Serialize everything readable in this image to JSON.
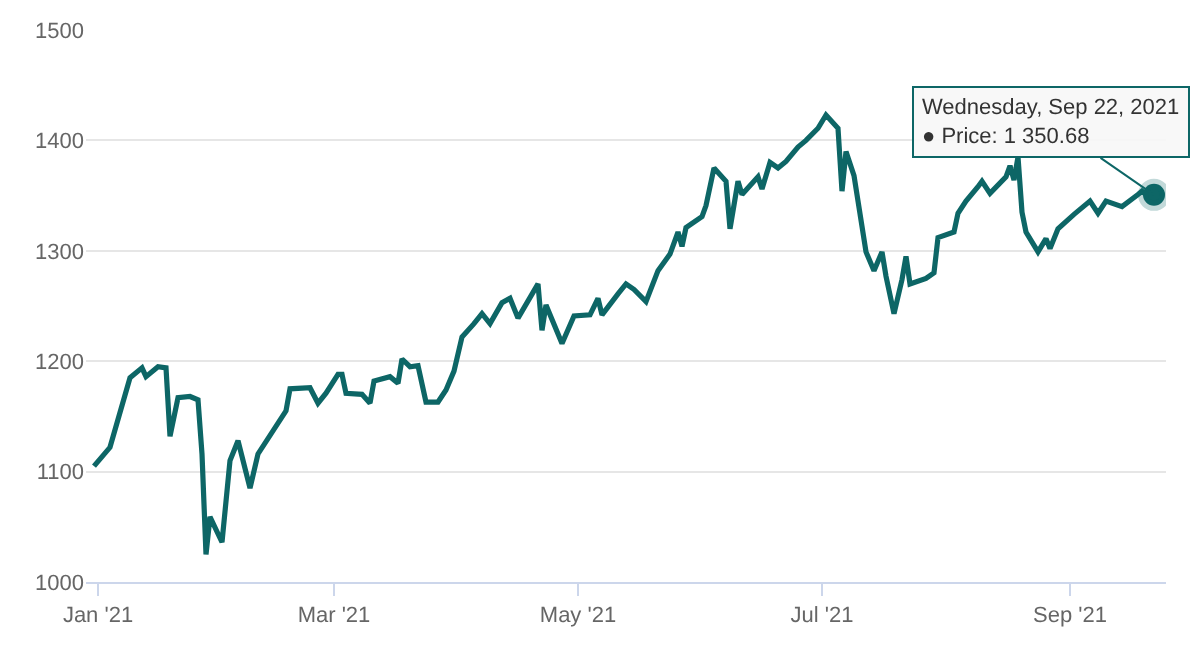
{
  "chart_data": {
    "type": "line",
    "x": [
      "2020-12-31",
      "2021-01-04",
      "2021-01-09",
      "2021-01-12",
      "2021-01-13",
      "2021-01-16",
      "2021-01-18",
      "2021-01-19",
      "2021-01-21",
      "2021-01-24",
      "2021-01-26",
      "2021-01-27",
      "2021-01-28",
      "2021-01-29",
      "2021-02-01",
      "2021-02-03",
      "2021-02-05",
      "2021-02-08",
      "2021-02-10",
      "2021-02-17",
      "2021-02-18",
      "2021-02-23",
      "2021-02-25",
      "2021-02-27",
      "2021-03-02",
      "2021-03-03",
      "2021-03-04",
      "2021-03-08",
      "2021-03-10",
      "2021-03-11",
      "2021-03-15",
      "2021-03-17",
      "2021-03-18",
      "2021-03-20",
      "2021-03-22",
      "2021-03-24",
      "2021-03-27",
      "2021-03-29",
      "2021-03-31",
      "2021-04-02",
      "2021-04-05",
      "2021-04-07",
      "2021-04-09",
      "2021-04-12",
      "2021-04-14",
      "2021-04-16",
      "2021-04-21",
      "2021-04-22",
      "2021-04-23",
      "2021-04-27",
      "2021-04-30",
      "2021-05-04",
      "2021-05-06",
      "2021-05-07",
      "2021-05-11",
      "2021-05-13",
      "2021-05-15",
      "2021-05-18",
      "2021-05-21",
      "2021-05-24",
      "2021-05-26",
      "2021-05-27",
      "2021-05-28",
      "2021-06-01",
      "2021-06-02",
      "2021-06-04",
      "2021-06-07",
      "2021-06-08",
      "2021-06-10",
      "2021-06-11",
      "2021-06-15",
      "2021-06-16",
      "2021-06-18",
      "2021-06-20",
      "2021-06-22",
      "2021-06-25",
      "2021-06-27",
      "2021-06-30",
      "2021-07-02",
      "2021-07-05",
      "2021-07-06",
      "2021-07-07",
      "2021-07-09",
      "2021-07-12",
      "2021-07-14",
      "2021-07-16",
      "2021-07-17",
      "2021-07-19",
      "2021-07-21",
      "2021-07-22",
      "2021-07-23",
      "2021-07-27",
      "2021-07-29",
      "2021-07-30",
      "2021-08-03",
      "2021-08-04",
      "2021-08-06",
      "2021-08-09",
      "2021-08-10",
      "2021-08-12",
      "2021-08-16",
      "2021-08-17",
      "2021-08-18",
      "2021-08-19",
      "2021-08-20",
      "2021-08-21",
      "2021-08-24",
      "2021-08-26",
      "2021-08-27",
      "2021-08-29",
      "2021-09-02",
      "2021-09-06",
      "2021-09-08",
      "2021-09-10",
      "2021-09-14",
      "2021-09-18",
      "2021-09-19",
      "2021-09-21",
      "2021-09-22"
    ],
    "series": [
      {
        "color": "#0d6666",
        "values": [
          1105,
          1122,
          1185,
          1194,
          1186,
          1195,
          1194,
          1132,
          1167,
          1168,
          1165,
          1116,
          1025,
          1059,
          1036,
          1110,
          1128,
          1085,
          1116,
          1155,
          1175,
          1176,
          1162,
          1171,
          1188,
          1188,
          1171,
          1170,
          1162,
          1182,
          1186,
          1180,
          1202,
          1195,
          1196,
          1163,
          1163,
          1174,
          1191,
          1222,
          1234,
          1243,
          1234,
          1253,
          1257,
          1239,
          1270,
          1228,
          1251,
          1216,
          1241,
          1242,
          1257,
          1242,
          1261,
          1270,
          1265,
          1254,
          1282,
          1297,
          1317,
          1304,
          1321,
          1331,
          1341,
          1375,
          1363,
          1320,
          1363,
          1351,
          1367,
          1356,
          1380,
          1375,
          1381,
          1394,
          1400,
          1411,
          1423,
          1411,
          1354,
          1390,
          1368,
          1299,
          1282,
          1299,
          1277,
          1243,
          1274,
          1295,
          1270,
          1275,
          1280,
          1312,
          1317,
          1334,
          1345,
          1358,
          1363,
          1352,
          1367,
          1377,
          1364,
          1385,
          1335,
          1317,
          1299,
          1311,
          1302,
          1320,
          1333,
          1345,
          1334,
          1345,
          1340,
          1351,
          1354,
          1348,
          1350.68
        ]
      }
    ],
    "xlim": [
      "2020-12-29",
      "2021-09-25"
    ],
    "xticks": [
      {
        "value": "2021-01-01",
        "label": "Jan '21"
      },
      {
        "value": "2021-03-01",
        "label": "Mar '21"
      },
      {
        "value": "2021-05-01",
        "label": "May '21"
      },
      {
        "value": "2021-07-01",
        "label": "Jul '21"
      },
      {
        "value": "2021-09-01",
        "label": "Sep '21"
      }
    ],
    "ylim": [
      1000,
      1500
    ],
    "yticks": [
      1000,
      1100,
      1200,
      1300,
      1400,
      1500
    ],
    "grid": "y",
    "legend": false,
    "marker": "none",
    "line_style": "solid",
    "annotations": [
      {
        "text": "Wednesday, Sep 22, 2021\n● Price: 1 350.68",
        "x": "2021-09-22",
        "y": 1350.68
      }
    ]
  }
}
